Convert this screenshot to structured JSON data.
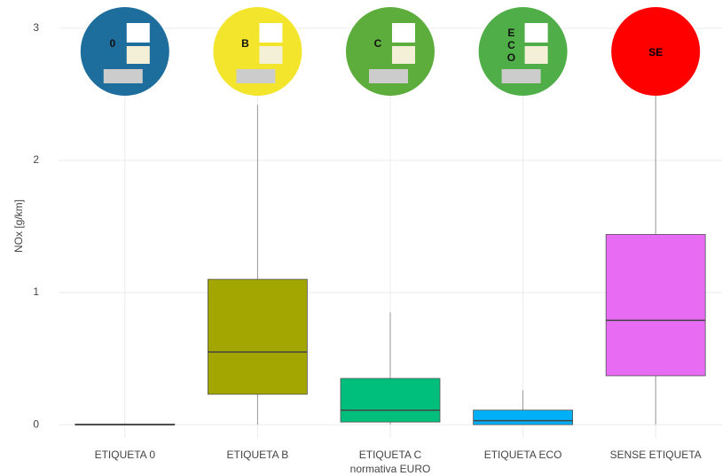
{
  "chart_data": {
    "type": "box",
    "x_label": "normativa EURO",
    "y_label": "NOx [g/km]",
    "categories": [
      "ETIQUETA 0",
      "ETIQUETA B",
      "ETIQUETA C",
      "ETIQUETA ECO",
      "SENSE ETIQUETA"
    ],
    "series": [
      {
        "name": "ETIQUETA 0",
        "color": "#f8766d",
        "min": 0,
        "q1": 0,
        "median": 0,
        "q3": 0.005,
        "max": 0.01
      },
      {
        "name": "ETIQUETA B",
        "color": "#a3a500",
        "min": 0,
        "q1": 0.23,
        "median": 0.55,
        "q3": 1.1,
        "max": 2.42
      },
      {
        "name": "ETIQUETA C",
        "color": "#00bf7d",
        "min": 0,
        "q1": 0.02,
        "median": 0.11,
        "q3": 0.35,
        "max": 0.85
      },
      {
        "name": "ETIQUETA ECO",
        "color": "#00b0f6",
        "min": 0,
        "q1": 0.0,
        "median": 0.03,
        "q3": 0.11,
        "max": 0.26
      },
      {
        "name": "SENSE ETIQUETA",
        "color": "#e76bf3",
        "min": 0,
        "q1": 0.37,
        "median": 0.79,
        "q3": 1.44,
        "max": 2.5
      }
    ],
    "badges": [
      {
        "label": "0",
        "color": "#1d6e9c"
      },
      {
        "label": "B",
        "color": "#f2e52c"
      },
      {
        "label": "C",
        "color": "#5cad3c"
      },
      {
        "label": "ECO",
        "color": "#4fae48"
      },
      {
        "label": "SE",
        "color": "#ff0000"
      }
    ],
    "ylim": [
      -0.1,
      3.1
    ],
    "yticks": [
      0,
      1,
      2,
      3
    ],
    "grid": true
  }
}
